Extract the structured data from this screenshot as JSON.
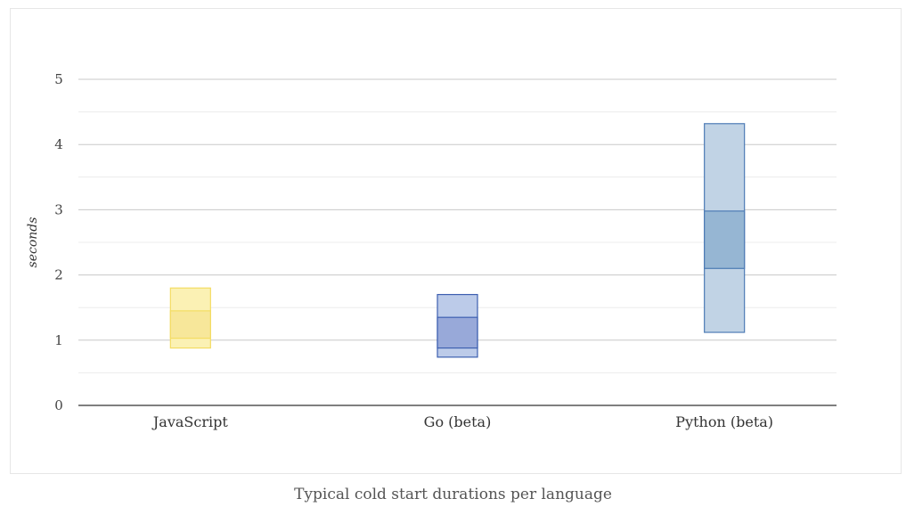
{
  "caption": "Typical cold start durations per language",
  "chart_data": {
    "type": "bar",
    "subtype": "floating-range",
    "title": "",
    "xlabel": "",
    "ylabel": "seconds",
    "ylim": [
      0,
      5
    ],
    "yticks": [
      "0",
      "1",
      "2",
      "3",
      "4",
      "5"
    ],
    "grid": true,
    "categories": [
      "JavaScript",
      "Go (beta)",
      "Python (beta)"
    ],
    "ranges": [
      {
        "low": 0.88,
        "high": 1.8,
        "inner_low": 1.03,
        "inner_high": 1.45,
        "color": "#f3dc63",
        "fill": "#fbf1b4",
        "inner_fill": "#f7e79a"
      },
      {
        "low": 0.74,
        "high": 1.7,
        "inner_low": 0.88,
        "inner_high": 1.35,
        "color": "#3d5fb0",
        "fill": "#bccbe9",
        "inner_fill": "#98a9d9"
      },
      {
        "low": 1.12,
        "high": 4.32,
        "inner_low": 2.1,
        "inner_high": 2.98,
        "color": "#4d7bb5",
        "fill": "#c1d3e5",
        "inner_fill": "#96b6d3"
      }
    ]
  }
}
